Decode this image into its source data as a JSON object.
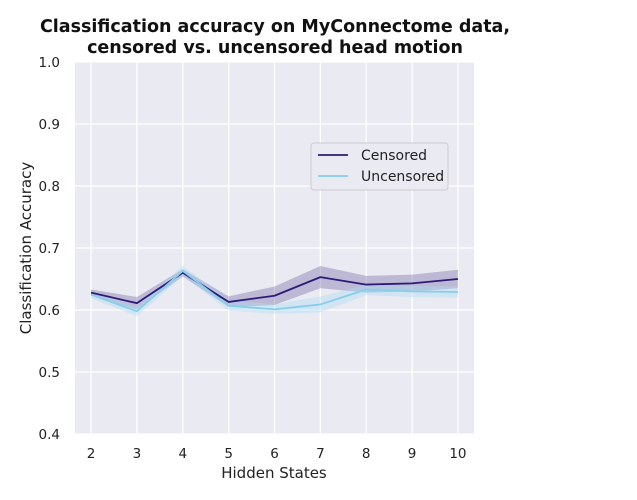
{
  "chart_data": {
    "type": "line",
    "title_line1": "Classification accuracy on MyConnectome data,",
    "title_line2": "censored vs. uncensored head motion",
    "xlabel": "Hidden States",
    "ylabel": "Classification Accuracy",
    "x": [
      2,
      3,
      4,
      5,
      6,
      7,
      8,
      9,
      10
    ],
    "xlim": [
      1.65,
      10.35
    ],
    "ylim": [
      0.4,
      1.0
    ],
    "yticks": [
      "0.4",
      "0.5",
      "0.6",
      "0.7",
      "0.8",
      "0.9",
      "1.0"
    ],
    "xticks": [
      "2",
      "3",
      "4",
      "5",
      "6",
      "7",
      "8",
      "9",
      "10"
    ],
    "grid": true,
    "legend_position": "right",
    "background_color": "#EAEAF2",
    "series": [
      {
        "name": "Censored",
        "color": "#2E1A7A",
        "band_color": "#7B70A8",
        "values": [
          0.628,
          0.611,
          0.66,
          0.613,
          0.623,
          0.653,
          0.641,
          0.643,
          0.65
        ],
        "lower": [
          0.623,
          0.601,
          0.654,
          0.605,
          0.608,
          0.635,
          0.628,
          0.63,
          0.635
        ],
        "upper": [
          0.633,
          0.621,
          0.666,
          0.622,
          0.638,
          0.671,
          0.655,
          0.657,
          0.665
        ]
      },
      {
        "name": "Uncensored",
        "color": "#87CEEB",
        "band_color": "#A9DDF2",
        "values": [
          0.625,
          0.598,
          0.663,
          0.607,
          0.601,
          0.609,
          0.633,
          0.63,
          0.629
        ],
        "lower": [
          0.619,
          0.59,
          0.655,
          0.599,
          0.594,
          0.596,
          0.624,
          0.621,
          0.62
        ],
        "upper": [
          0.631,
          0.606,
          0.671,
          0.616,
          0.609,
          0.622,
          0.641,
          0.639,
          0.638
        ]
      }
    ]
  }
}
